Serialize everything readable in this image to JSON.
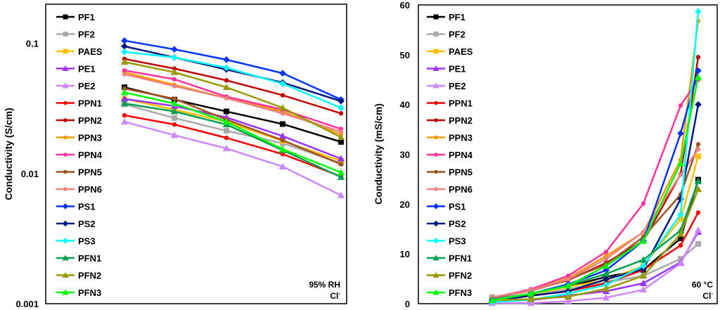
{
  "chart_data": [
    {
      "type": "line",
      "ylabel": "Conductivity (S/cm)",
      "xlabel": "",
      "yscale": "log",
      "ylim": [
        0.001,
        0.2
      ],
      "yticks": [
        "0.001",
        "0.01",
        "0.1"
      ],
      "annotation": [
        "95% RH",
        "Cl-"
      ],
      "legend_position": "left",
      "grid": false,
      "series": [
        {
          "name": "PF1",
          "color": "#000000",
          "marker": "square",
          "values": [
            0.046,
            0.037,
            0.03,
            0.024,
            0.0175
          ]
        },
        {
          "name": "PF2",
          "color": "#aaaaaa",
          "marker": "square",
          "values": [
            0.034,
            0.0267,
            0.0213,
            0.0171,
            0.012
          ]
        },
        {
          "name": "PAES",
          "color": "#ffc000",
          "marker": "square",
          "values": [
            0.0375,
            0.031,
            0.025,
            0.0178,
            0.0125
          ]
        },
        {
          "name": "PE1",
          "color": "#9933ff",
          "marker": "triangle",
          "values": [
            0.0375,
            0.033,
            0.027,
            0.0194,
            0.013
          ]
        },
        {
          "name": "PE2",
          "color": "#cc88ff",
          "marker": "triangle",
          "values": [
            0.025,
            0.0197,
            0.0156,
            0.0113,
            0.0068
          ]
        },
        {
          "name": "PPN1",
          "color": "#ff0000",
          "marker": "circle",
          "values": [
            0.028,
            0.0238,
            0.0188,
            0.0141,
            0.0095
          ]
        },
        {
          "name": "PPN2",
          "color": "#c00000",
          "marker": "circle",
          "values": [
            0.076,
            0.064,
            0.052,
            0.04,
            0.029
          ]
        },
        {
          "name": "PPN3",
          "color": "#ff9900",
          "marker": "circle",
          "values": [
            0.06,
            0.048,
            0.038,
            0.03,
            0.02
          ]
        },
        {
          "name": "PPN4",
          "color": "#ff3399",
          "marker": "circle",
          "values": [
            0.062,
            0.053,
            0.039,
            0.031,
            0.022
          ]
        },
        {
          "name": "PPN5",
          "color": "#a0521d",
          "marker": "circle",
          "values": [
            0.045,
            0.0375,
            0.026,
            0.018,
            0.0118
          ]
        },
        {
          "name": "PPN6",
          "color": "#f08080",
          "marker": "circle",
          "values": [
            0.058,
            0.047,
            0.038,
            0.029,
            0.021
          ]
        },
        {
          "name": "PS1",
          "color": "#0033ff",
          "marker": "diamond",
          "values": [
            0.105,
            0.09,
            0.075,
            0.059,
            0.037
          ]
        },
        {
          "name": "PS2",
          "color": "#001a80",
          "marker": "diamond",
          "values": [
            0.095,
            0.078,
            0.063,
            0.05,
            0.036
          ]
        },
        {
          "name": "PS3",
          "color": "#00ffff",
          "marker": "diamond",
          "values": [
            0.086,
            0.078,
            0.065,
            0.049,
            0.032
          ]
        },
        {
          "name": "PFN1",
          "color": "#00a050",
          "marker": "triangle",
          "values": [
            0.0345,
            0.03,
            0.0238,
            0.0151,
            0.0094
          ]
        },
        {
          "name": "PFN2",
          "color": "#999900",
          "marker": "triangle",
          "values": [
            0.072,
            0.06,
            0.046,
            0.032,
            0.019
          ]
        },
        {
          "name": "PFN3",
          "color": "#00ff00",
          "marker": "triangle",
          "values": [
            0.042,
            0.0345,
            0.025,
            0.0154,
            0.0102
          ]
        }
      ]
    },
    {
      "type": "line",
      "ylabel": "Conductivity (mS/cm)",
      "xlabel": "",
      "ylim": [
        0,
        60
      ],
      "yticks": [
        "0",
        "10",
        "20",
        "30",
        "40",
        "50",
        "60"
      ],
      "annotation": [
        "60 °C",
        "Cl-"
      ],
      "legend_position": "left",
      "grid": false,
      "series": [
        {
          "name": "PF1",
          "color": "#000000",
          "marker": "square",
          "values": [
            0.8,
            2,
            3.4,
            5.4,
            6.8,
            13.1,
            24.9
          ]
        },
        {
          "name": "PF2",
          "color": "#aaaaaa",
          "marker": "square",
          "values": [
            1.3,
            1.7,
            2.9,
            4.3,
            5.6,
            9,
            12
          ]
        },
        {
          "name": "PAES",
          "color": "#ffc000",
          "marker": "square",
          "values": [
            0.7,
            1.9,
            3.4,
            4.7,
            7.6,
            17,
            29.6
          ]
        },
        {
          "name": "PE1",
          "color": "#9933ff",
          "marker": "triangle",
          "values": [
            0.5,
            0.7,
            1.6,
            2.5,
            4.1,
            8.3,
            14.4
          ]
        },
        {
          "name": "PE2",
          "color": "#cc88ff",
          "marker": "triangle",
          "values": [
            0.1,
            0.1,
            0.5,
            1.2,
            2.8,
            8.1,
            14.8
          ]
        },
        {
          "name": "PPN1",
          "color": "#ff0000",
          "marker": "circle",
          "values": [
            0.7,
            1.6,
            2.5,
            4.1,
            6.8,
            11.7,
            18.3
          ]
        },
        {
          "name": "PPN2",
          "color": "#c00000",
          "marker": "circle",
          "values": [
            1.2,
            2.7,
            4.7,
            8.2,
            12.6,
            26,
            49.5
          ]
        },
        {
          "name": "PPN3",
          "color": "#ff9900",
          "marker": "circle",
          "values": [
            1.2,
            2.7,
            5.1,
            9.6,
            14.3,
            28.9,
            56.8
          ]
        },
        {
          "name": "PPN4",
          "color": "#ff3399",
          "marker": "circle",
          "values": [
            1.2,
            2.9,
            5.6,
            10.4,
            20.1,
            39.8,
            45
          ]
        },
        {
          "name": "PPN5",
          "color": "#a0521d",
          "marker": "circle",
          "values": [
            1.2,
            2.6,
            4.8,
            7.9,
            13.4,
            21.9,
            32
          ]
        },
        {
          "name": "PPN6",
          "color": "#f08080",
          "marker": "circle",
          "values": [
            1.3,
            2.7,
            4.9,
            9,
            14.4,
            25.9,
            31
          ]
        },
        {
          "name": "PS1",
          "color": "#0033ff",
          "marker": "diamond",
          "values": [
            0.8,
            2,
            3.9,
            6.7,
            12.6,
            34.2,
            46.8
          ]
        },
        {
          "name": "PS2",
          "color": "#001a80",
          "marker": "diamond",
          "values": [
            0.5,
            1.6,
            2.5,
            4.9,
            7,
            21,
            40
          ]
        },
        {
          "name": "PS3",
          "color": "#00ffff",
          "marker": "diamond",
          "values": [
            0.3,
            0.8,
            2,
            3.8,
            7.6,
            17.9,
            58.7
          ]
        },
        {
          "name": "PFN1",
          "color": "#00a050",
          "marker": "triangle",
          "values": [
            0.7,
            2,
            3.6,
            6,
            8.8,
            14.7,
            24.6
          ]
        },
        {
          "name": "PFN2",
          "color": "#999900",
          "marker": "triangle",
          "values": [
            0.7,
            0.9,
            1.4,
            3,
            5.6,
            14,
            23
          ]
        },
        {
          "name": "PFN3",
          "color": "#00ff00",
          "marker": "triangle",
          "values": [
            0.7,
            2,
            3.6,
            7.6,
            12.6,
            28.2,
            45.5
          ]
        }
      ]
    }
  ]
}
